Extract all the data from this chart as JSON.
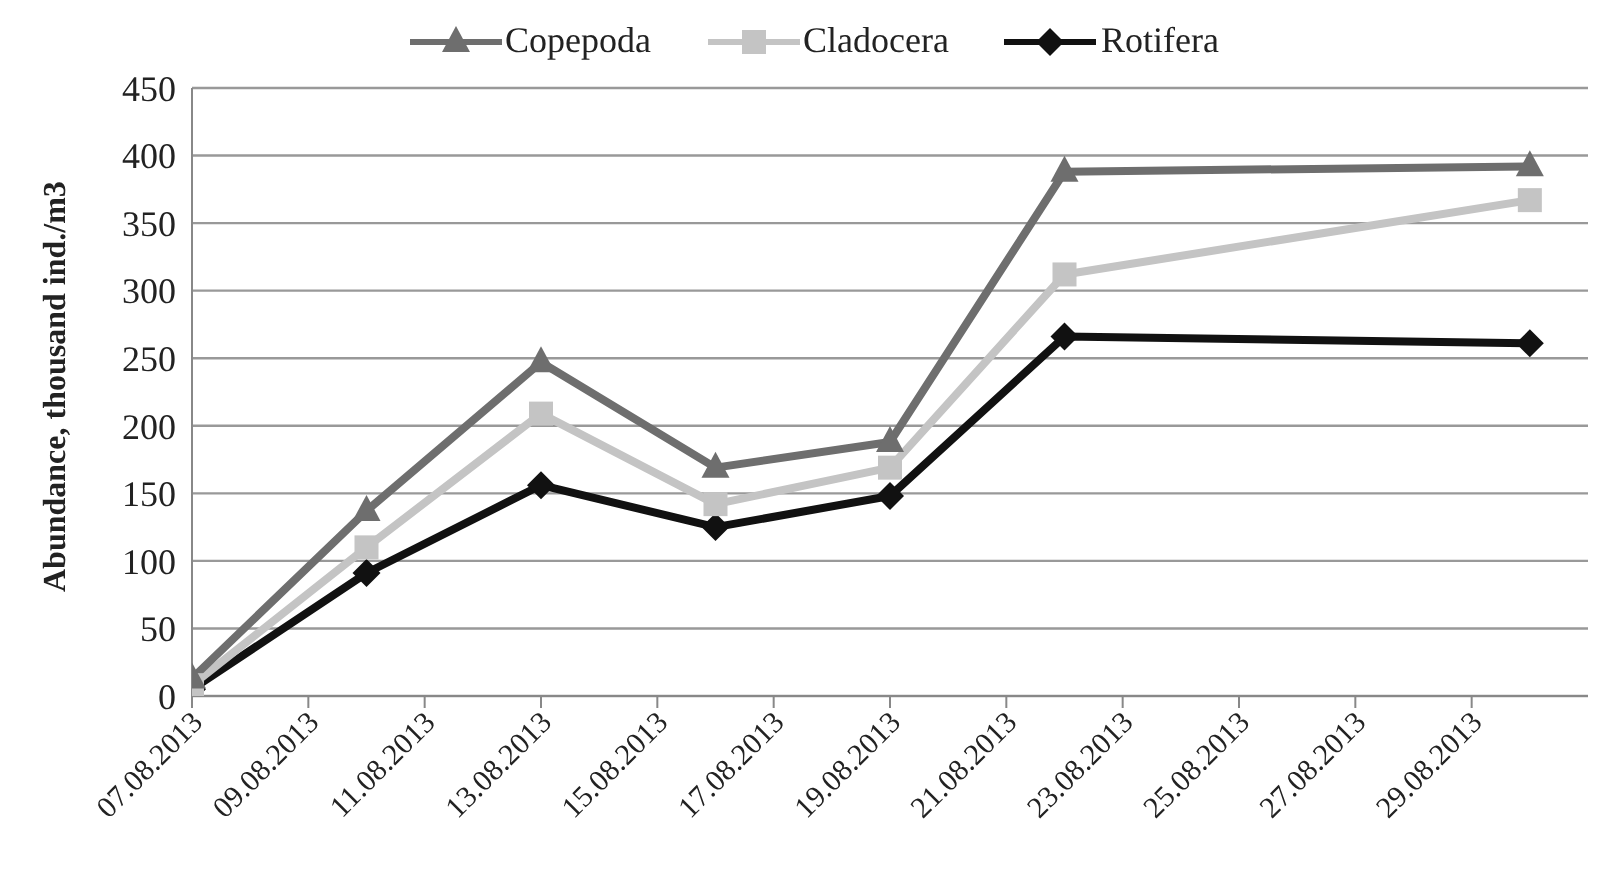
{
  "chart_data": {
    "type": "line",
    "ylabel": "Abundance, thousand ind./m3",
    "x": [
      "2013-08-07",
      "2013-08-10",
      "2013-08-13",
      "2013-08-16",
      "2013-08-19",
      "2013-08-22",
      "2013-08-30"
    ],
    "series": [
      {
        "name": "Copepoda",
        "color": "#6e6e6e",
        "marker": "triangle",
        "values": [
          13,
          137,
          247,
          169,
          188,
          388,
          392
        ]
      },
      {
        "name": "Cladocera",
        "color": "#c4c4c4",
        "marker": "square",
        "values": [
          8,
          110,
          209,
          142,
          169,
          312,
          367
        ]
      },
      {
        "name": "Rotifera",
        "color": "#111111",
        "marker": "diamond",
        "values": [
          5,
          91,
          156,
          125,
          148,
          266,
          261
        ]
      }
    ],
    "xlim": [
      "2013-08-07",
      "2013-08-31"
    ],
    "xticks": [
      {
        "value": "2013-08-07",
        "label": "07.08.2013"
      },
      {
        "value": "2013-08-09",
        "label": "09.08.2013"
      },
      {
        "value": "2013-08-11",
        "label": "11.08.2013"
      },
      {
        "value": "2013-08-13",
        "label": "13.08.2013"
      },
      {
        "value": "2013-08-15",
        "label": "15.08.2013"
      },
      {
        "value": "2013-08-17",
        "label": "17.08.2013"
      },
      {
        "value": "2013-08-19",
        "label": "19.08.2013"
      },
      {
        "value": "2013-08-21",
        "label": "21.08.2013"
      },
      {
        "value": "2013-08-23",
        "label": "23.08.2013"
      },
      {
        "value": "2013-08-25",
        "label": "25.08.2013"
      },
      {
        "value": "2013-08-27",
        "label": "27.08.2013"
      },
      {
        "value": "2013-08-29",
        "label": "29.08.2013"
      }
    ],
    "ylim": [
      0,
      450
    ],
    "yticks": [
      0,
      50,
      100,
      150,
      200,
      250,
      300,
      350,
      400,
      450
    ],
    "grid": "y",
    "legend": "top"
  }
}
